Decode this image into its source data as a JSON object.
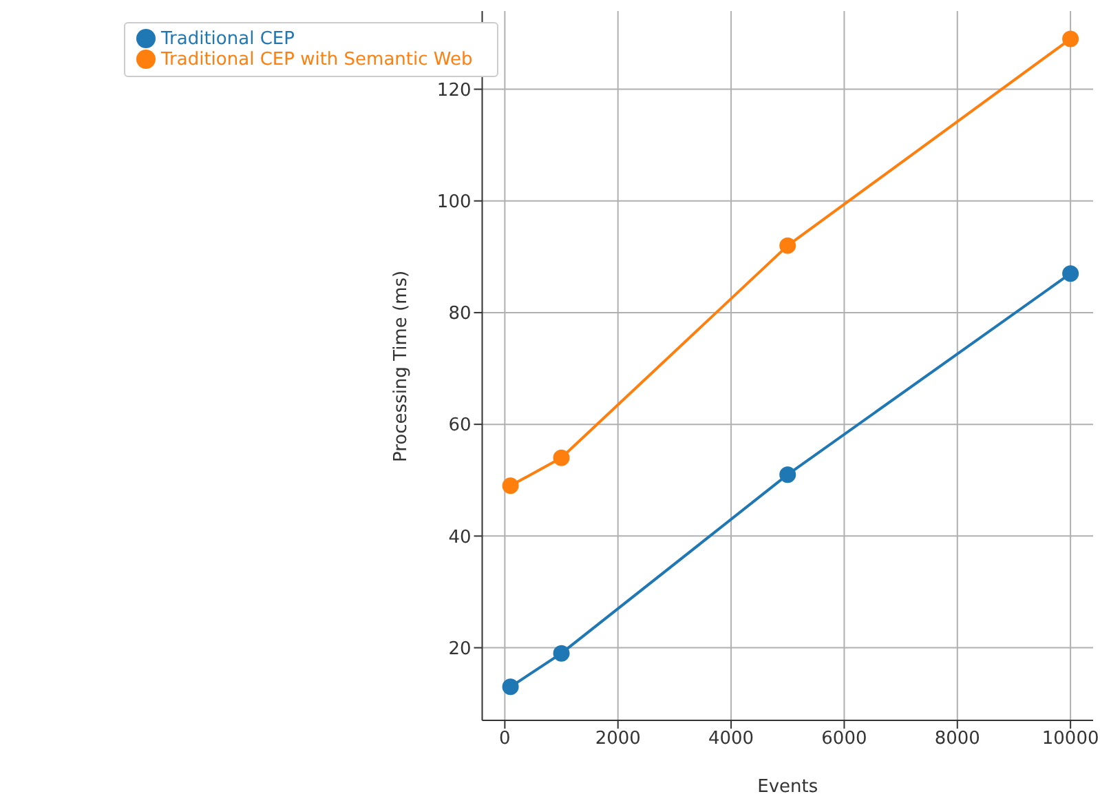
{
  "chart_data": {
    "type": "line",
    "xlabel": "Events",
    "ylabel": "Processing Time (ms)",
    "x": [
      100,
      1000,
      5000,
      10000
    ],
    "series": [
      {
        "name": "Traditional CEP",
        "color": "#1f77b4",
        "values": [
          13,
          19,
          51,
          87
        ]
      },
      {
        "name": "Traditional CEP with Semantic Web",
        "color": "#ff7f0e",
        "values": [
          49,
          54,
          92,
          129
        ]
      }
    ],
    "xlim": [
      -400,
      10400
    ],
    "xticks": [
      0,
      2000,
      4000,
      6000,
      8000,
      10000
    ],
    "ylim": [
      7,
      134
    ],
    "yticks": [
      20,
      40,
      60,
      80,
      100,
      120
    ],
    "grid": true,
    "legend": "top left",
    "marker": "circle",
    "line_style": "solid"
  }
}
